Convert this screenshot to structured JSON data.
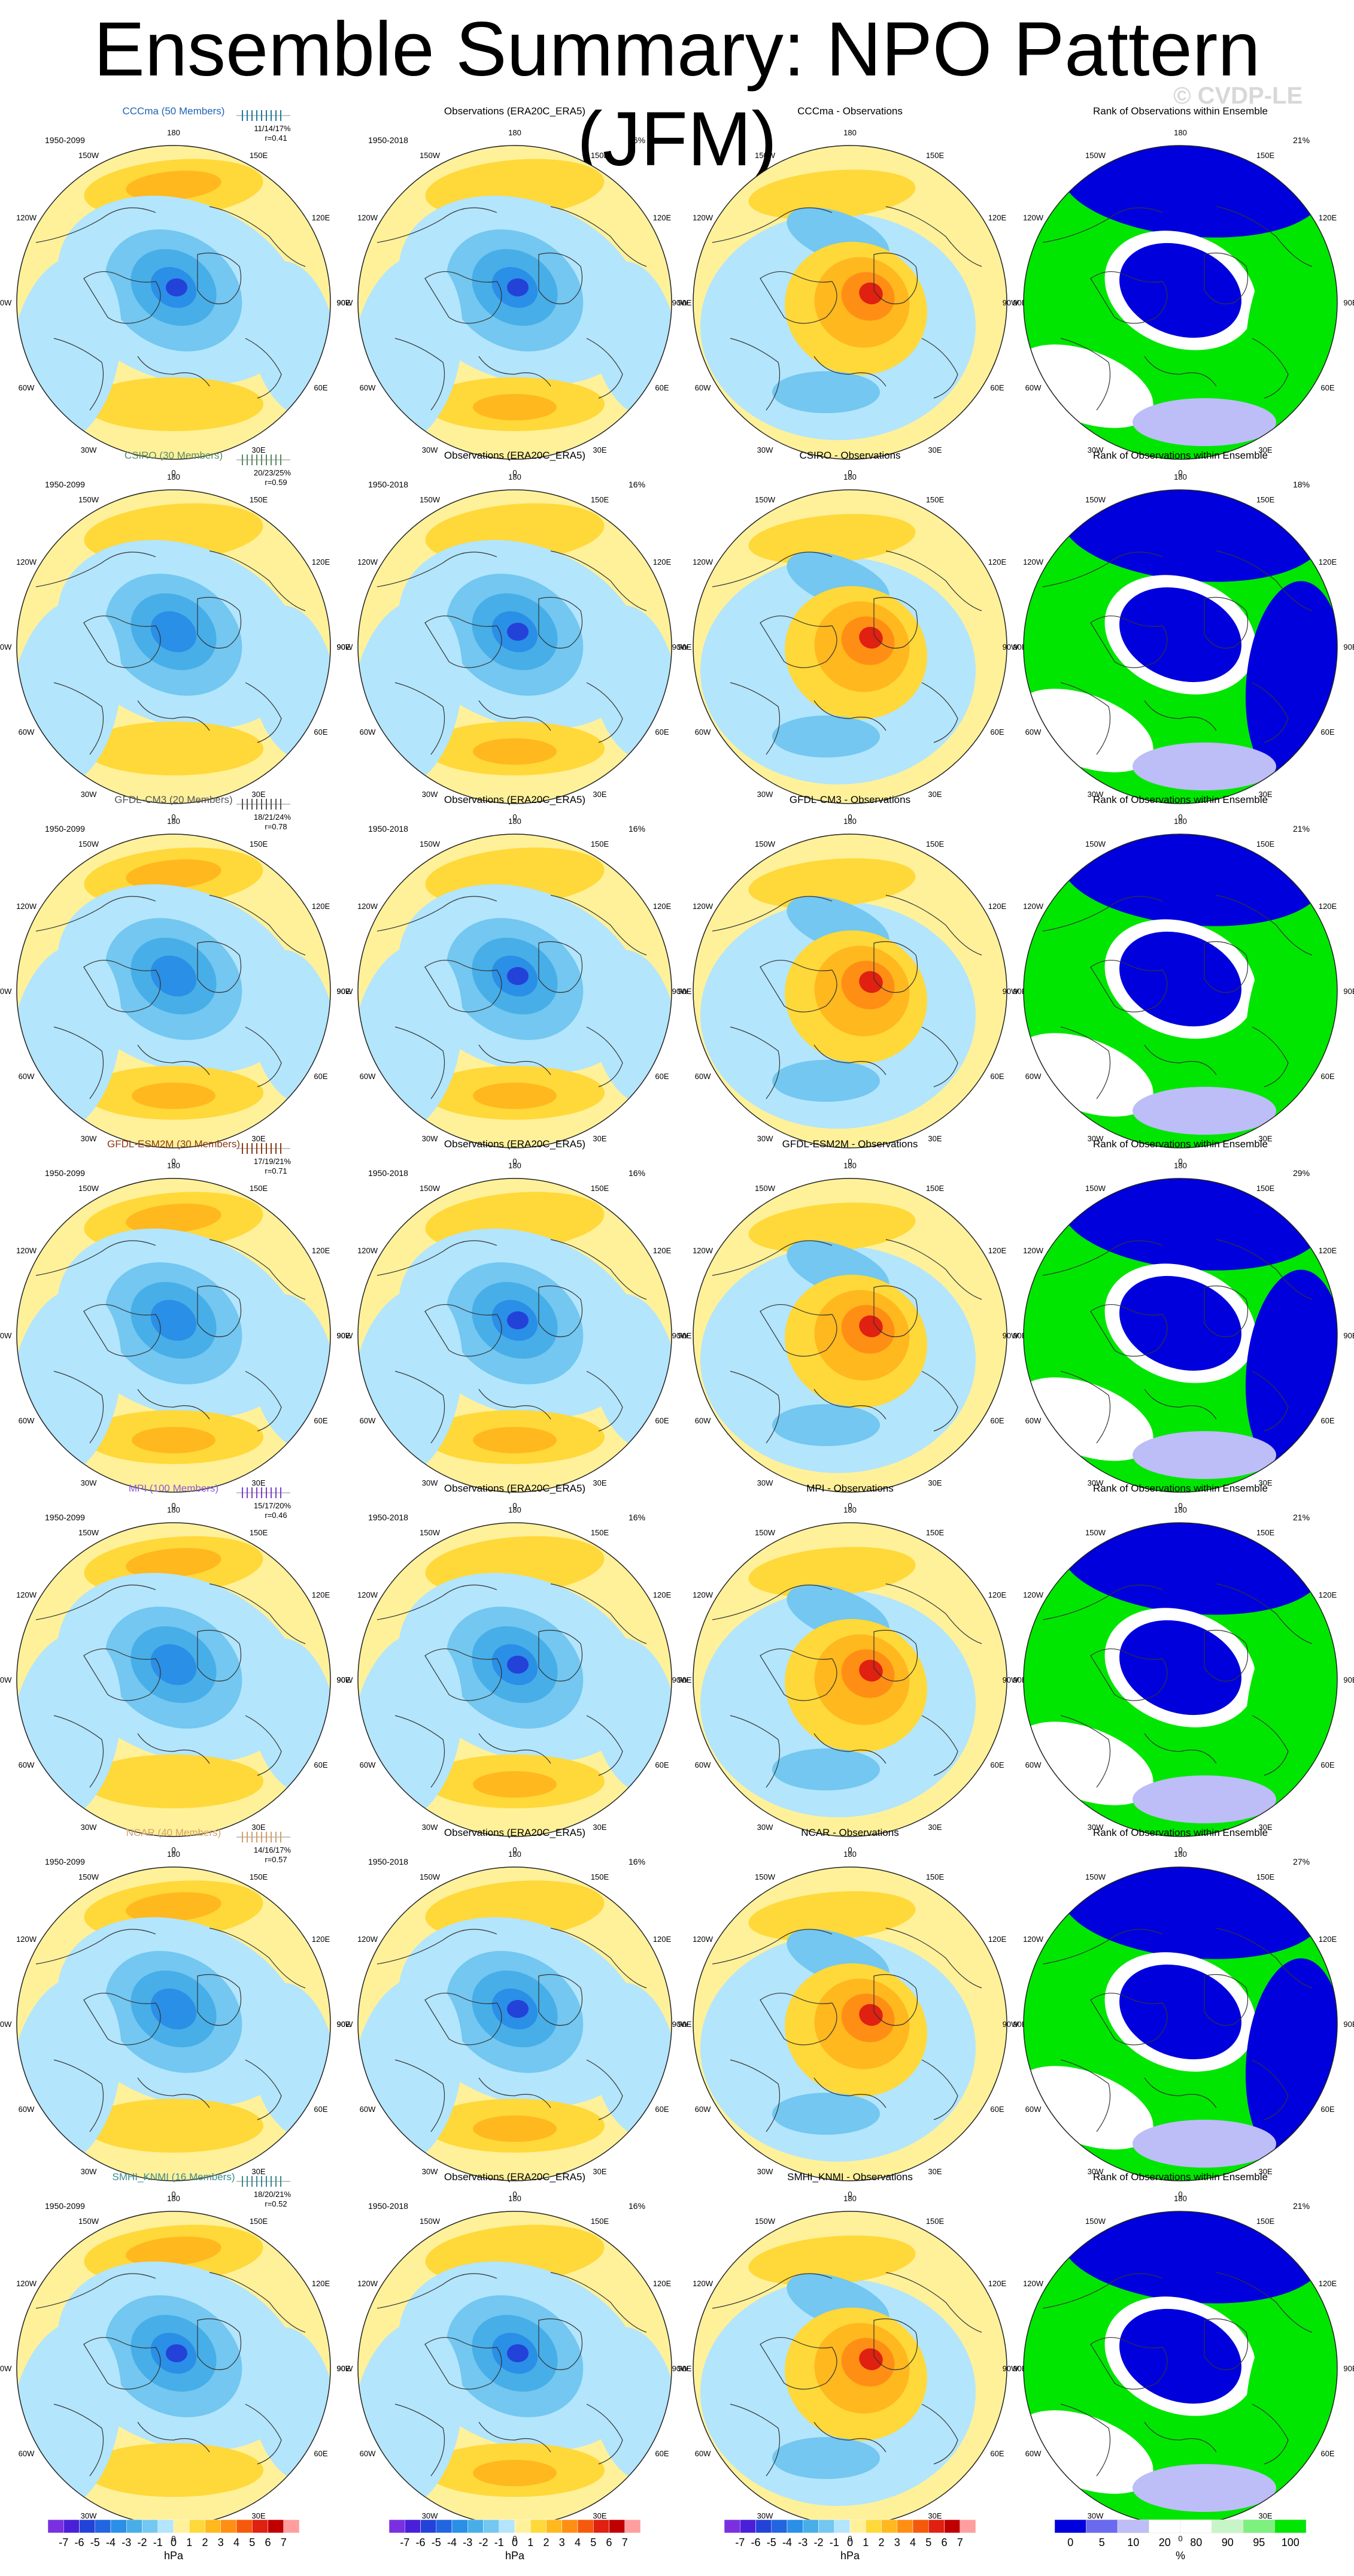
{
  "title": "Ensemble Summary: NPO Pattern (JFM)",
  "watermark": "© CVDP-LE",
  "colors": {
    "ocean_bg": "#ffffff",
    "neg": [
      "#b3e5fc",
      "#73c7f0",
      "#47aee8",
      "#2a8fe6",
      "#2166e0",
      "#2342d8",
      "#4a1fd8"
    ],
    "pos": [
      "#fff19a",
      "#ffd83a",
      "#ffb81e",
      "#ff8f14",
      "#f55a0c",
      "#e02010",
      "#c00000"
    ],
    "rank": {
      "low1": "#0000dd",
      "low2": "#6a6af0",
      "low3": "#bdbdf7",
      "mid": "#ffffff",
      "high3": "#c8f5c8",
      "high2": "#7ef07e",
      "high1": "#00e600"
    }
  },
  "longitude_labels": [
    "180",
    "150E",
    "120E",
    "90E",
    "60E",
    "30E",
    "0",
    "30W",
    "60W",
    "90W",
    "120W",
    "150W"
  ],
  "obs_title": "Observations (ERA20C_ERA5)",
  "obs_years": "1950-2018",
  "obs_pct": "16%",
  "rank_title": "Rank of Observations within Ensemble",
  "chart_data": {
    "type": "heatmap",
    "description_units": "hPa",
    "rows": [
      {
        "model": "CCCma",
        "title": "CCCma (50 Members)",
        "title_color": "#1e63b5",
        "years": "1950-2099",
        "stats": "11/14/17%",
        "corr": "r=0.41",
        "diff_title": "CCCma - Observations",
        "rank_pct": "21%",
        "model_hue": "#1f7a9a"
      },
      {
        "model": "CSIRO",
        "title": "CSIRO (30 Members)",
        "title_color": "#5a8a62",
        "years": "1950-2099",
        "stats": "20/23/25%",
        "corr": "r=0.59",
        "diff_title": "CSIRO - Observations",
        "rank_pct": "18%",
        "model_hue": "#5a8a62"
      },
      {
        "model": "GFDL-CM3",
        "title": "GFDL-CM3 (20 Members)",
        "title_color": "#555555",
        "years": "1950-2099",
        "stats": "18/21/24%",
        "corr": "r=0.78",
        "diff_title": "GFDL-CM3 - Observations",
        "rank_pct": "21%",
        "model_hue": "#555555"
      },
      {
        "model": "GFDL-ESM2M",
        "title": "GFDL-ESM2M (30 Members)",
        "title_color": "#8a3a14",
        "years": "1950-2099",
        "stats": "17/19/21%",
        "corr": "r=0.71",
        "diff_title": "GFDL-ESM2M - Observations",
        "rank_pct": "29%",
        "model_hue": "#8a3a14"
      },
      {
        "model": "MPI",
        "title": "MPI (100 Members)",
        "title_color": "#8d5bd6",
        "years": "1950-2099",
        "stats": "15/17/20%",
        "corr": "r=0.46",
        "diff_title": "MPI - Observations",
        "rank_pct": "21%",
        "model_hue": "#7a3fd0"
      },
      {
        "model": "NCAR",
        "title": "NCAR (40 Members)",
        "title_color": "#d4a06a",
        "years": "1950-2099",
        "stats": "14/16/17%",
        "corr": "r=0.57",
        "diff_title": "NCAR - Observations",
        "rank_pct": "27%",
        "model_hue": "#d4a06a"
      },
      {
        "model": "SMHI_KNMI",
        "title": "SMHI_KNMI (16 Members)",
        "title_color": "#3b8a90",
        "years": "1950-2099",
        "stats": "18/20/21%",
        "corr": "r=0.52",
        "diff_title": "SMHI_KNMI - Observations",
        "rank_pct": "21%",
        "model_hue": "#3b8a90"
      }
    ],
    "colorbars": [
      {
        "labels": [
          "-7",
          "-6",
          "-5",
          "-4",
          "-3",
          "-2",
          "-1",
          "0",
          "1",
          "2",
          "3",
          "4",
          "5",
          "6",
          "7"
        ],
        "unit": "hPa"
      },
      {
        "labels": [
          "-7",
          "-6",
          "-5",
          "-4",
          "-3",
          "-2",
          "-1",
          "0",
          "1",
          "2",
          "3",
          "4",
          "5",
          "6",
          "7"
        ],
        "unit": "hPa"
      },
      {
        "labels": [
          "-7",
          "-6",
          "-5",
          "-4",
          "-3",
          "-2",
          "-1",
          "0",
          "1",
          "2",
          "3",
          "4",
          "5",
          "6",
          "7"
        ],
        "unit": "hPa"
      },
      {
        "labels": [
          "0",
          "5",
          "10",
          "20",
          "80",
          "90",
          "95",
          "100"
        ],
        "unit": "%"
      }
    ]
  }
}
